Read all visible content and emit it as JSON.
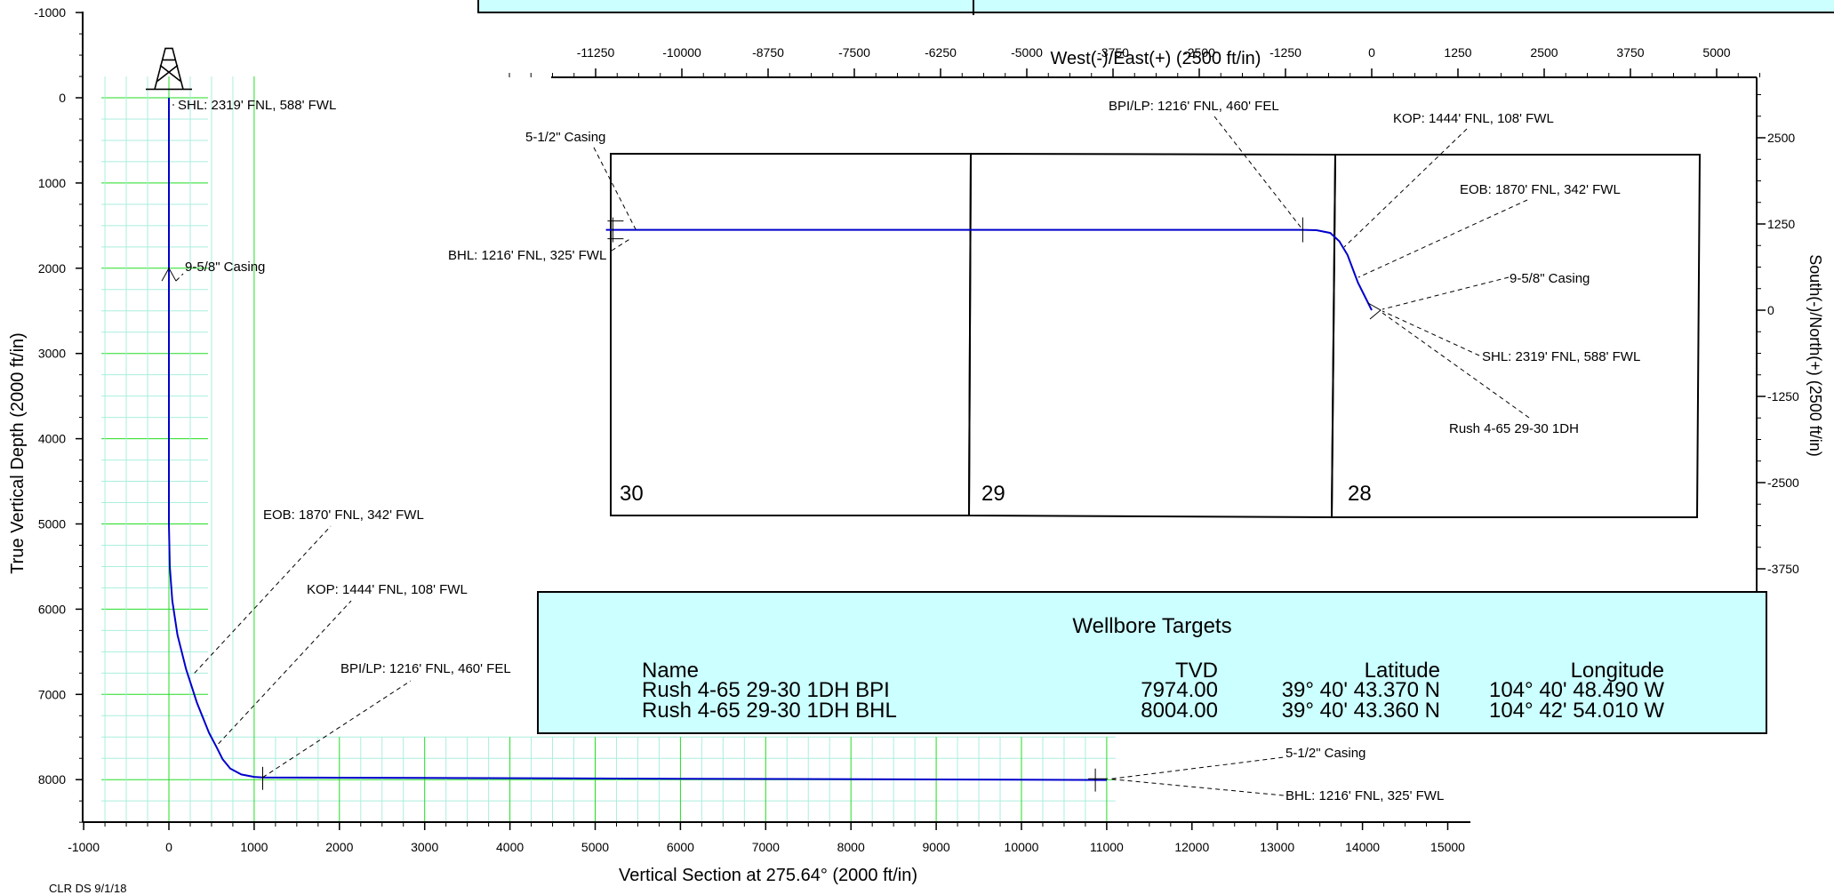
{
  "chart_data": [
    {
      "type": "line",
      "title": "",
      "xlabel": "Vertical Section at 275.64° (2000 ft/in)",
      "ylabel": "True Vertical Depth (2000 ft/in)",
      "xlim": [
        -1000,
        15000
      ],
      "ylim": [
        8500,
        -1000
      ],
      "grid": true,
      "x_ticks": [
        -1000,
        0,
        1000,
        2000,
        3000,
        4000,
        5000,
        6000,
        7000,
        8000,
        9000,
        10000,
        11000,
        12000,
        13000,
        14000,
        15000
      ],
      "y_ticks": [
        -1000,
        0,
        1000,
        2000,
        3000,
        4000,
        5000,
        6000,
        7000,
        8000
      ],
      "series": [
        {
          "color": "#0000cc",
          "x": [
            0,
            0,
            0,
            10,
            40,
            100,
            200,
            330,
            470,
            560,
            630,
            720,
            850,
            1000,
            1100,
            3000,
            6000,
            9000,
            11000
          ],
          "y": [
            0,
            2000,
            5000,
            5500,
            5900,
            6300,
            6700,
            7100,
            7450,
            7620,
            7760,
            7870,
            7940,
            7968,
            7974,
            7980,
            7990,
            7998,
            8004
          ]
        }
      ],
      "annotations": [
        {
          "text": "SHL: 2319' FNL, 588' FWL",
          "x": 20,
          "y": 90
        },
        {
          "text": "9-5/8\" Casing",
          "x": 20,
          "y": 2100
        },
        {
          "text": "EOB: 1870' FNL, 342' FWL",
          "x": 300,
          "y": 6750
        },
        {
          "text": "KOP: 1444' FNL, 108' FWL",
          "x": 580,
          "y": 7580
        },
        {
          "text": "BPI/LP: 1216' FNL, 460' FEL",
          "x": 1100,
          "y": 7974
        },
        {
          "text": "5-1/2\" Casing",
          "x": 10900,
          "y": 8000
        },
        {
          "text": "BHL: 1216' FNL, 325' FWL",
          "x": 10900,
          "y": 8004
        }
      ]
    },
    {
      "type": "line",
      "title": "",
      "xlabel": "West(-)/East(+) (2500 ft/in)",
      "ylabel": "South(-)/North(+) (2500 ft/in)",
      "xlim": [
        -12500,
        5625
      ],
      "ylim": [
        -4250,
        3375
      ],
      "x_ticks": [
        -11250,
        -10000,
        -8750,
        -7500,
        -6250,
        -5000,
        -3750,
        -2500,
        -1250,
        0,
        1250,
        2500,
        3750,
        5000
      ],
      "y_ticks": [
        2500,
        1250,
        0,
        -1250,
        -2500,
        -3750
      ],
      "series": [
        {
          "color": "#0000cc",
          "x": [
            0,
            -200,
            -350,
            -470,
            -600,
            -800,
            -1000,
            -5000,
            -9000,
            -11100
          ],
          "y": [
            0,
            400,
            800,
            1000,
            1120,
            1160,
            1165,
            1165,
            1165,
            1165
          ]
        }
      ],
      "sections": [
        "30",
        "29",
        "28"
      ],
      "annotations": [
        {
          "text": "BPI/LP: 1216' FNL, 460' FEL",
          "x": -1000,
          "y": 1165
        },
        {
          "text": "KOP: 1444' FNL, 108' FWL",
          "x": -470,
          "y": 1000
        },
        {
          "text": "EOB: 1870' FNL, 342' FWL",
          "x": -270,
          "y": 500
        },
        {
          "text": "9-5/8\" Casing",
          "x": 0,
          "y": 0
        },
        {
          "text": "SHL: 2319' FNL, 588' FWL",
          "x": 0,
          "y": 0
        },
        {
          "text": "Rush 4-65 29-30 1DH",
          "x": 0,
          "y": 0
        },
        {
          "text": "5-1/2\" Casing",
          "x": -11000,
          "y": 1165
        },
        {
          "text": "BHL: 1216' FNL, 325' FWL",
          "x": -11000,
          "y": 1100
        }
      ]
    }
  ],
  "targets": {
    "title": "Wellbore Targets",
    "headers": {
      "name": "Name",
      "tvd": "TVD",
      "lat": "Latitude",
      "lon": "Longitude"
    },
    "rows": [
      {
        "name": "Rush 4-65 29-30 1DH BPI",
        "tvd": "7974.00",
        "lat": "39° 40' 43.370 N",
        "lon": "104° 40' 48.490 W"
      },
      {
        "name": "Rush 4-65 29-30 1DH BHL",
        "tvd": "8004.00",
        "lat": "39° 40' 43.360 N",
        "lon": "104° 42' 54.010 W"
      }
    ]
  },
  "footer_note": "CLR DS 9/1/18"
}
